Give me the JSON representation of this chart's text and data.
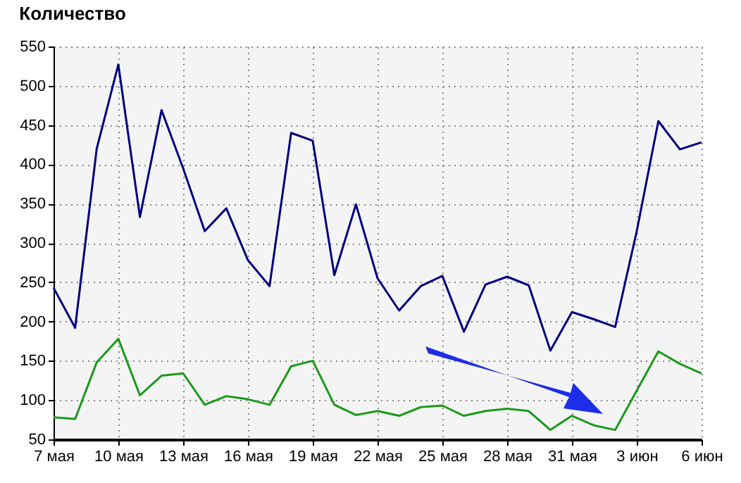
{
  "chart_data": {
    "type": "line",
    "title": "Количество",
    "x": [
      "--05-07",
      "--05-08",
      "--05-09",
      "--05-10",
      "--05-11",
      "--05-12",
      "--05-13",
      "--05-14",
      "--05-15",
      "--05-16",
      "--05-17",
      "--05-18",
      "--05-19",
      "--05-20",
      "--05-21",
      "--05-22",
      "--05-23",
      "--05-24",
      "--05-25",
      "--05-26",
      "--05-27",
      "--05-28",
      "--05-29",
      "--05-30",
      "--05-31",
      "--06-01",
      "--06-02",
      "--06-03",
      "--06-04",
      "--06-05",
      "--06-06"
    ],
    "series": [
      {
        "color": "#000080",
        "values": [
          243,
          192,
          420,
          527,
          333,
          469,
          395,
          315,
          344,
          278,
          245,
          440,
          430,
          259,
          349,
          255,
          214,
          245,
          258,
          187,
          247,
          257,
          246,
          163,
          212,
          203,
          193,
          315,
          455,
          419,
          428
        ]
      },
      {
        "color": "#1a9a1a",
        "values": [
          78,
          76,
          148,
          178,
          106,
          131,
          134,
          94,
          105,
          101,
          94,
          143,
          150,
          94,
          81,
          86,
          80,
          91,
          93,
          80,
          86,
          89,
          86,
          62,
          80,
          68,
          62,
          112,
          162,
          146,
          134
        ]
      }
    ],
    "xlim": [
      "--05-07",
      "--06-06"
    ],
    "xticks": [
      {
        "value": "--05-07",
        "label": "7 мая"
      },
      {
        "value": "--05-10",
        "label": "10 мая"
      },
      {
        "value": "--05-13",
        "label": "13 мая"
      },
      {
        "value": "--05-16",
        "label": "16 мая"
      },
      {
        "value": "--05-19",
        "label": "19 мая"
      },
      {
        "value": "--05-22",
        "label": "22 мая"
      },
      {
        "value": "--05-25",
        "label": "25 мая"
      },
      {
        "value": "--05-28",
        "label": "28 мая"
      },
      {
        "value": "--05-31",
        "label": "31 мая"
      },
      {
        "value": "--06-03",
        "label": "3 июн"
      },
      {
        "value": "--06-06",
        "label": "6 июн"
      }
    ],
    "ylim": [
      50,
      550
    ],
    "yticks": [
      50,
      100,
      150,
      200,
      250,
      300,
      350,
      400,
      450,
      500,
      550
    ],
    "grid": true,
    "marker": "none",
    "line_style": "solid"
  }
}
